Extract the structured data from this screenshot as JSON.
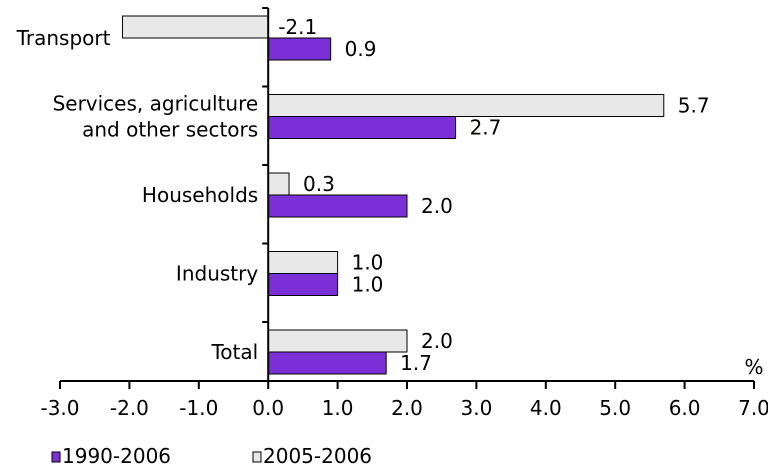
{
  "chart_data": {
    "type": "bar",
    "orientation": "horizontal",
    "categories": [
      "Transport",
      "Services, agriculture and other sectors",
      "Households",
      "Industry",
      "Total"
    ],
    "category_lines": [
      [
        "Transport"
      ],
      [
        "Services, agriculture",
        "and other sectors"
      ],
      [
        "Households"
      ],
      [
        "Industry"
      ],
      [
        "Total"
      ]
    ],
    "series": [
      {
        "name": "2005-2006",
        "values": [
          -2.1,
          5.7,
          0.3,
          1.0,
          2.0
        ],
        "labels": [
          "-2.1",
          "5.7",
          "0.3",
          "1.0",
          "2.0"
        ],
        "color": "#e8e8e8",
        "stroke": "#000000"
      },
      {
        "name": "1990-2006",
        "values": [
          0.9,
          2.7,
          2.0,
          1.0,
          1.7
        ],
        "labels": [
          "0.9",
          "2.7",
          "2.0",
          "1.0",
          "1.7"
        ],
        "color": "#7b2fd6",
        "stroke": "#000000"
      }
    ],
    "xlim": [
      -3.0,
      7.0
    ],
    "xticks": [
      -3.0,
      -2.0,
      -1.0,
      0.0,
      1.0,
      2.0,
      3.0,
      4.0,
      5.0,
      6.0,
      7.0
    ],
    "xtick_labels": [
      "-3.0",
      "-2.0",
      "-1.0",
      "0.0",
      "1.0",
      "2.0",
      "3.0",
      "4.0",
      "5.0",
      "6.0",
      "7.0"
    ],
    "xlabel": "%",
    "grid": false,
    "legend": {
      "position": "bottom",
      "order": [
        "1990-2006",
        "2005-2006"
      ]
    }
  }
}
